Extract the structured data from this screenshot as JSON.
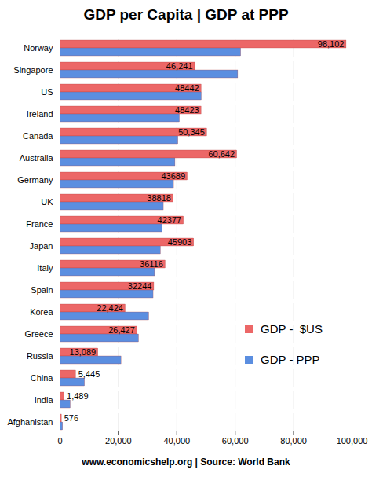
{
  "chart_data": {
    "type": "bar",
    "orientation": "horizontal",
    "title": "GDP per Capita | GDP at PPP",
    "caption": "www.economicshelp.org | Source: World Bank",
    "categories": [
      "Norway",
      "Singapore",
      "US",
      "Ireland",
      "Canada",
      "Australia",
      "Germany",
      "UK",
      "France",
      "Japan",
      "Italy",
      "Spain",
      "Korea",
      "Greece",
      "Russia",
      "China",
      "India",
      "Afghanistan"
    ],
    "series": [
      {
        "name": "GDP -  $US",
        "color": "#ec6767",
        "values": [
          98102,
          46241,
          48442,
          48423,
          50345,
          60642,
          43689,
          38818,
          42377,
          45903,
          36116,
          32244,
          22424,
          26427,
          13089,
          5445,
          1489,
          576
        ],
        "value_labels": [
          "98,102",
          "46,241",
          "48442",
          "48423",
          "50,345",
          "60,642",
          "43689",
          "38818",
          "42377",
          "45903",
          "36116",
          "32244",
          "22,424",
          "26,427",
          "13,089",
          "5,445",
          "1,489",
          "576"
        ]
      },
      {
        "name": "GDP - PPP",
        "color": "#5b8ee0",
        "values": [
          62000,
          61000,
          48500,
          41000,
          40500,
          39500,
          39000,
          35500,
          35000,
          34500,
          32500,
          32000,
          30500,
          27000,
          21000,
          8500,
          3600,
          1000
        ]
      }
    ],
    "xlim": [
      0,
      100000
    ],
    "xticks": [
      0,
      {
        "value": 20000,
        "label": "20,000"
      },
      {
        "value": 40000,
        "label": "40,000"
      },
      {
        "value": 60000,
        "label": "60,000"
      },
      {
        "value": 80000,
        "label": "80,000"
      },
      {
        "value": 100000,
        "label": "100,000"
      }
    ],
    "grid": true,
    "legend": "right",
    "data_labels": true
  }
}
